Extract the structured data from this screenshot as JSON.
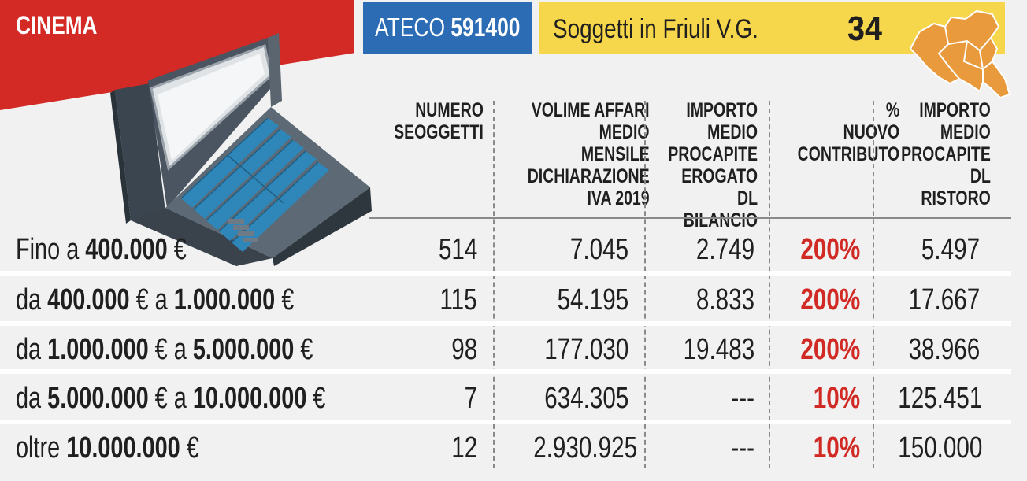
{
  "header": {
    "title": "CINEMA",
    "ateco_label": "ATECO",
    "ateco_code": "591400",
    "soggetti_label": "Soggetti in Friuli V.G.",
    "soggetti_count": "34"
  },
  "columns": [
    "NUMERO\nSEOGGETTI",
    "VOLIME AFFARI\nMEDIO MENSILE\nDICHIARAZIONE\nIVA 2019",
    "IMPORTO\nMEDIO\nPROCAPITE\nEROGATO\nDL BILANCIO",
    "%\nNUOVO\nCONTRIBUTO",
    "IMPORTO\nMEDIO\nPROCAPITE\nDL RISTORO"
  ],
  "rows": [
    {
      "label_pre": "Fino a ",
      "label_b1": "400.000",
      "label_mid": " €",
      "label_b2": "",
      "label_post": "",
      "numero": "514",
      "volume": "7.045",
      "erogato": "2.749",
      "percent": "200%",
      "ristoro": "5.497"
    },
    {
      "label_pre": "da ",
      "label_b1": "400.000",
      "label_mid": " € a ",
      "label_b2": "1.000.000",
      "label_post": " €",
      "numero": "115",
      "volume": "54.195",
      "erogato": "8.833",
      "percent": "200%",
      "ristoro": "17.667"
    },
    {
      "label_pre": "da ",
      "label_b1": "1.000.000",
      "label_mid": " € a ",
      "label_b2": "5.000.000",
      "label_post": " €",
      "numero": "98",
      "volume": "177.030",
      "erogato": "19.483",
      "percent": "200%",
      "ristoro": "38.966"
    },
    {
      "label_pre": "da ",
      "label_b1": "5.000.000",
      "label_mid": " € a ",
      "label_b2": "10.000.000",
      "label_post": " €",
      "numero": "7",
      "volume": "634.305",
      "erogato": "---",
      "percent": "10%",
      "ristoro": "125.451"
    },
    {
      "label_pre": "oltre ",
      "label_b1": "10.000.000",
      "label_mid": " €",
      "label_b2": "",
      "label_post": "",
      "numero": "12",
      "volume": "2.930.925",
      "erogato": "---",
      "percent": "10%",
      "ristoro": "150.000"
    }
  ],
  "colors": {
    "red_banner": "#d32a26",
    "ateco_blue": "#2b6cb5",
    "soggetti_yellow": "#f6d64a",
    "map_orange": "#e89a3c",
    "percent_red": "#d12a24"
  },
  "illustration": {
    "theater": "cinema-theater-illustration",
    "map": "friuli-map-icon"
  }
}
